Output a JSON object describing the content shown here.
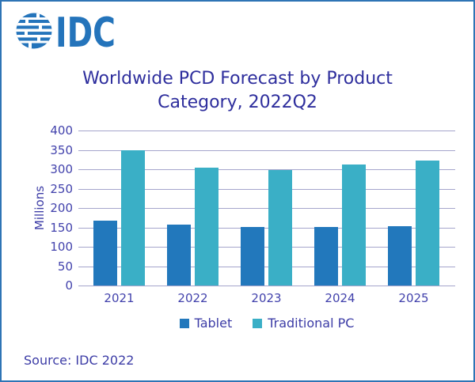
{
  "logo": {
    "text": "IDC",
    "color": "#2474BB"
  },
  "title": {
    "line1": "Worldwide PCD Forecast by Product",
    "line2": "Category, 2022Q2"
  },
  "source": "Source: IDC 2022",
  "colors": {
    "logo_blue": "#2474BB",
    "title_text": "#2E2E9D",
    "axis_text": "#4242AC",
    "gridline": "#A5A5CC",
    "border": "#2E74B5",
    "tablet_bar": "#2278BC",
    "traditional_pc_bar": "#3AAFC6"
  },
  "chart_data": {
    "type": "bar",
    "title": "Worldwide PCD Forecast by Product Category, 2022Q2",
    "categories": [
      "2021",
      "2022",
      "2023",
      "2024",
      "2025"
    ],
    "series": [
      {
        "name": "Tablet",
        "color": "#2278BC",
        "values": [
          168,
          157,
          151,
          151,
          153
        ]
      },
      {
        "name": "Traditional PC",
        "color": "#3AAFC6",
        "values": [
          349,
          305,
          297,
          312,
          322
        ]
      }
    ],
    "xlabel": "",
    "ylabel": "Millions",
    "ylim": [
      0,
      400
    ],
    "ytick_step": 50,
    "grid": true,
    "legend_position": "bottom",
    "units": "Millions"
  }
}
